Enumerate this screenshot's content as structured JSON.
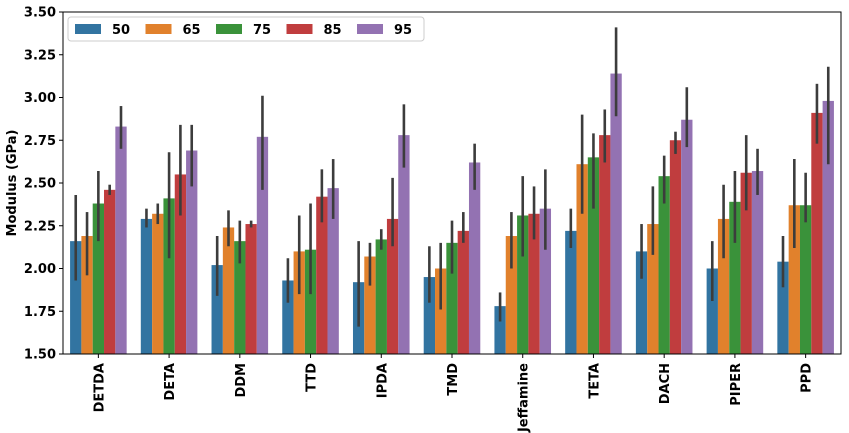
{
  "chart_data": {
    "type": "bar",
    "title": "",
    "xlabel": "",
    "ylabel": "Modulus (GPa)",
    "ylim": [
      1.5,
      3.5
    ],
    "yticks": [
      "1.50",
      "1.75",
      "2.00",
      "2.25",
      "2.50",
      "2.75",
      "3.00",
      "3.25",
      "3.50"
    ],
    "grid": false,
    "legend_position": "top-left",
    "categories": [
      "DETDA",
      "DETA",
      "DDM",
      "TTD",
      "IPDA",
      "TMD",
      "Jeffamine",
      "TETA",
      "DACH",
      "PIPER",
      "PPD"
    ],
    "series": [
      {
        "name": "50",
        "color": "#3274a1",
        "values": [
          2.16,
          2.29,
          2.02,
          1.93,
          1.92,
          1.95,
          1.78,
          2.22,
          2.1,
          2.0,
          2.04
        ],
        "err_low": [
          1.93,
          2.24,
          1.84,
          1.8,
          1.66,
          1.8,
          1.69,
          2.12,
          1.94,
          1.81,
          1.89
        ],
        "err_high": [
          2.43,
          2.35,
          2.19,
          2.06,
          2.16,
          2.13,
          1.86,
          2.35,
          2.26,
          2.16,
          2.19
        ]
      },
      {
        "name": "65",
        "color": "#e1812c",
        "values": [
          2.19,
          2.32,
          2.24,
          2.1,
          2.07,
          2.0,
          2.19,
          2.61,
          2.26,
          2.29,
          2.37
        ],
        "err_low": [
          1.96,
          2.26,
          2.13,
          1.85,
          1.9,
          1.76,
          2.0,
          2.32,
          2.08,
          2.06,
          2.12
        ],
        "err_high": [
          2.33,
          2.38,
          2.34,
          2.31,
          2.15,
          2.15,
          2.33,
          2.9,
          2.48,
          2.49,
          2.64
        ]
      },
      {
        "name": "75",
        "color": "#3a923a",
        "values": [
          2.38,
          2.41,
          2.16,
          2.11,
          2.17,
          2.15,
          2.31,
          2.65,
          2.54,
          2.39,
          2.37
        ],
        "err_low": [
          2.16,
          2.06,
          2.03,
          1.85,
          2.11,
          1.97,
          2.07,
          2.35,
          2.38,
          2.15,
          2.27
        ],
        "err_high": [
          2.57,
          2.68,
          2.28,
          2.38,
          2.23,
          2.28,
          2.54,
          2.79,
          2.66,
          2.57,
          2.56
        ]
      },
      {
        "name": "85",
        "color": "#c03d3e",
        "values": [
          2.46,
          2.55,
          2.26,
          2.42,
          2.29,
          2.22,
          2.32,
          2.78,
          2.75,
          2.56,
          2.91
        ],
        "err_low": [
          2.43,
          2.31,
          2.24,
          2.27,
          2.13,
          2.15,
          2.17,
          2.62,
          2.67,
          2.34,
          2.73
        ],
        "err_high": [
          2.49,
          2.84,
          2.28,
          2.58,
          2.53,
          2.33,
          2.48,
          2.93,
          2.8,
          2.78,
          3.08
        ]
      },
      {
        "name": "95",
        "color": "#9372b2",
        "values": [
          2.83,
          2.69,
          2.77,
          2.47,
          2.78,
          2.62,
          2.35,
          3.14,
          2.87,
          2.57,
          2.98
        ],
        "err_low": [
          2.7,
          2.48,
          2.46,
          2.29,
          2.59,
          2.46,
          2.11,
          2.89,
          2.71,
          2.43,
          2.61
        ],
        "err_high": [
          2.95,
          2.84,
          3.01,
          2.64,
          2.96,
          2.73,
          2.58,
          3.41,
          3.06,
          2.7,
          3.18
        ]
      }
    ]
  }
}
